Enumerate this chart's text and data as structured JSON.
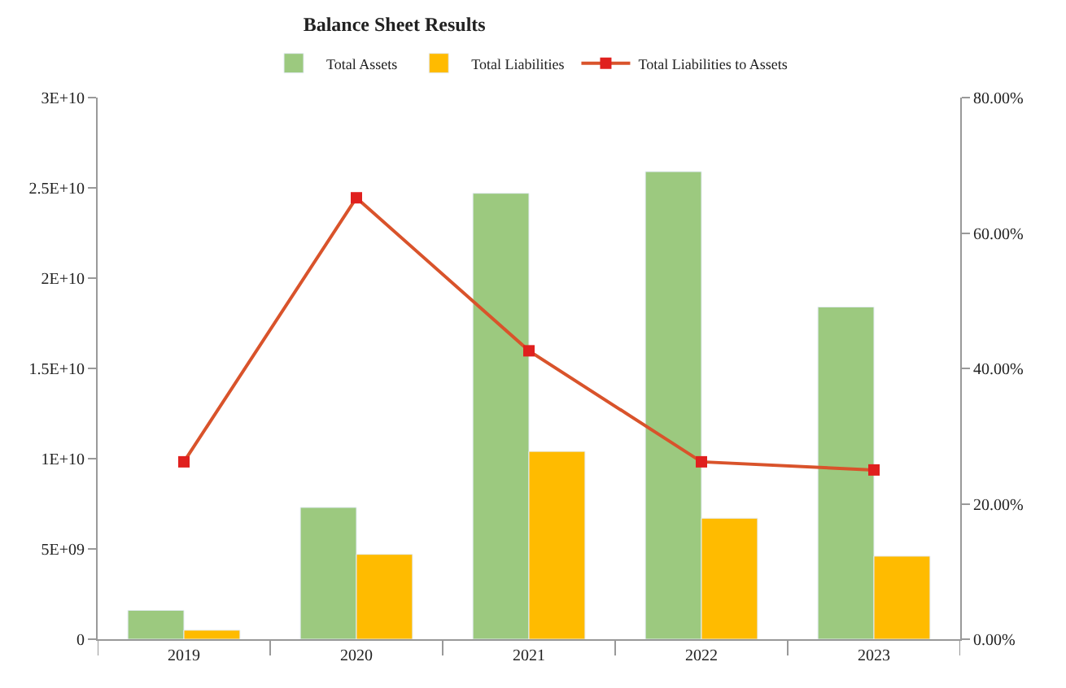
{
  "chart_data": {
    "type": "bar",
    "title": "Balance Sheet Results",
    "categories": [
      "2019",
      "2020",
      "2021",
      "2022",
      "2023"
    ],
    "series": [
      {
        "name": "Total Assets",
        "color": "#9cc97f",
        "values": [
          1600000000.0,
          7300000000.0,
          24700000000.0,
          25900000000.0,
          18400000000.0
        ]
      },
      {
        "name": "Total Liabilities",
        "color": "#ffbb00",
        "values": [
          500000000.0,
          4700000000.0,
          10400000000.0,
          6700000000.0,
          4600000000.0
        ]
      },
      {
        "name": "Total Liabilities to Assets",
        "type": "line",
        "axis": "y2",
        "color": "#d9532b",
        "marker": "square",
        "values": [
          26.2,
          65.2,
          42.6,
          26.2,
          25.0
        ]
      }
    ],
    "ylim": [
      0,
      30000000000.0
    ],
    "yticks": [
      0,
      {
        "value": 5000000000.0,
        "label": "5E+09"
      },
      {
        "value": 10000000000.0,
        "label": "1E+10"
      },
      {
        "value": 15000000000.0,
        "label": "1.5E+10"
      },
      {
        "value": 20000000000.0,
        "label": "2E+10"
      },
      {
        "value": 25000000000.0,
        "label": "2.5E+10"
      },
      {
        "value": 30000000000.0,
        "label": "3E+10"
      }
    ],
    "y2lim": [
      0,
      80
    ],
    "y2ticks": [
      {
        "value": 0,
        "label": "0.00%"
      },
      {
        "value": 20,
        "label": "20.00%"
      },
      {
        "value": 40,
        "label": "40.00%"
      },
      {
        "value": 60,
        "label": "60.00%"
      },
      {
        "value": 80,
        "label": "80.00%"
      }
    ],
    "legend": "top"
  }
}
